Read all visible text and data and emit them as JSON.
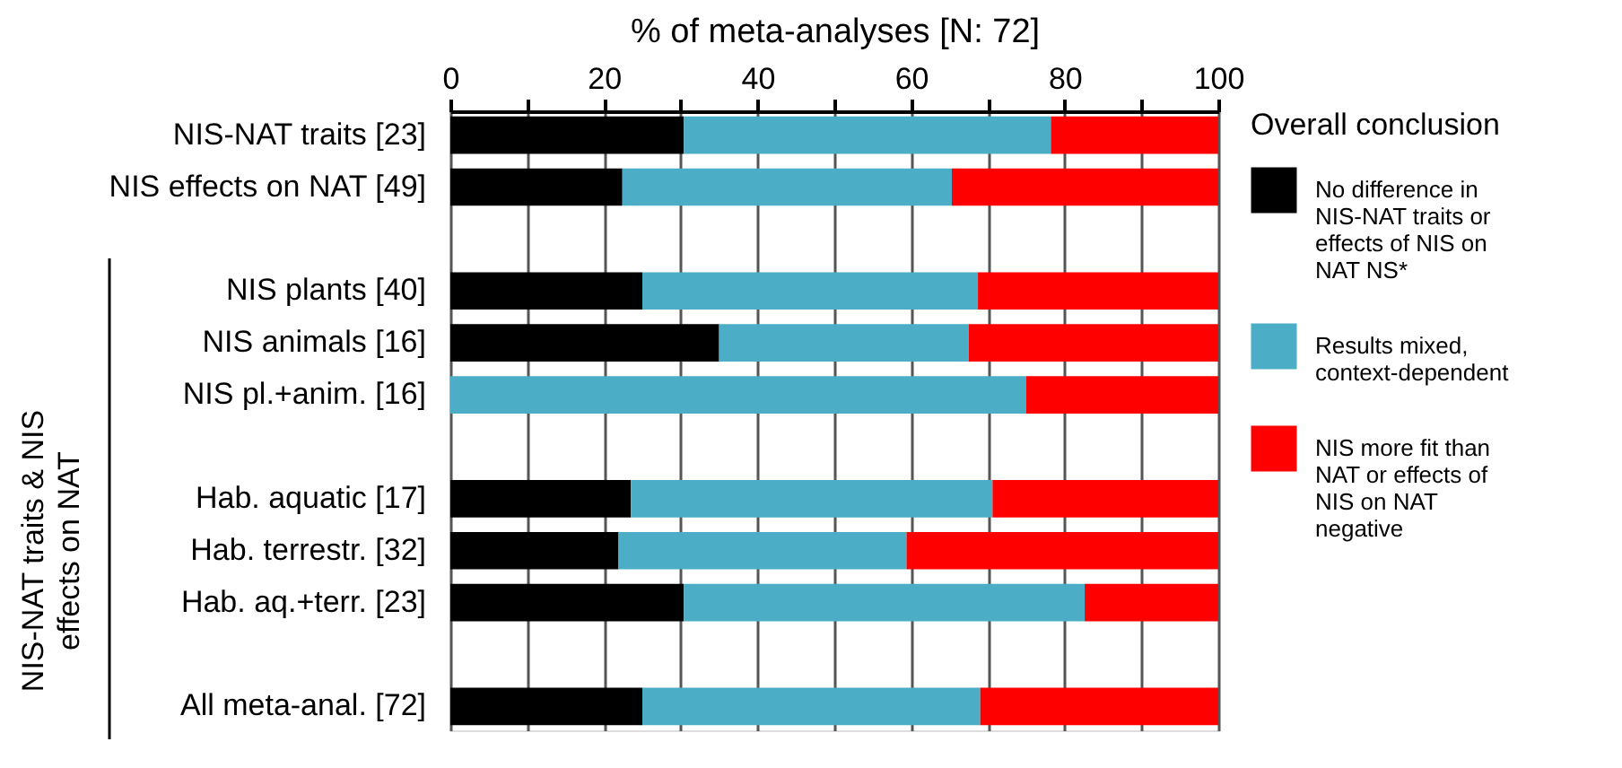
{
  "chart_data": {
    "type": "bar",
    "orientation": "horizontal",
    "stacked": true,
    "xlabel": "% of meta-analyses [N: 72]",
    "legend_title": "Overall conclusion",
    "categories": [
      "NIS-NAT traits [23]",
      "NIS effects on NAT [49]",
      null,
      "NIS plants [40]",
      "NIS animals [16]",
      "NIS pl.+anim. [16]",
      null,
      "Hab. aquatic [17]",
      "Hab. terrestr. [32]",
      "Hab. aq.+terr. [23]",
      null,
      "All meta-anal. [72]"
    ],
    "series": [
      {
        "name": "No difference in NIS-NAT traits or effects of NIS on NAT NS*",
        "color": "#000000",
        "values": [
          30.4,
          22.4,
          null,
          25,
          35,
          0,
          null,
          23.5,
          21.9,
          30.4,
          null,
          25
        ]
      },
      {
        "name": "Results mixed, context-dependent",
        "color": "#4badc6",
        "values": [
          47.8,
          42.9,
          null,
          43.7,
          32.5,
          75,
          null,
          47.1,
          37.5,
          52.2,
          null,
          44
        ]
      },
      {
        "name": "NIS more fit than NAT or effects of NIS on NAT negative",
        "color": "#ff0000",
        "values": [
          21.8,
          34.7,
          null,
          31.3,
          32.5,
          25,
          null,
          29.4,
          40.6,
          17.4,
          null,
          31
        ]
      }
    ],
    "xlim": [
      0,
      100
    ],
    "xticks": [
      0,
      {
        "value": 10,
        "label": null
      },
      20,
      {
        "value": 30,
        "label": null
      },
      40,
      {
        "value": 50,
        "label": null
      },
      60,
      {
        "value": 70,
        "label": null
      },
      80,
      {
        "value": 90,
        "label": null
      },
      100
    ],
    "grid": "x",
    "legend": "right",
    "annotations": [
      "NIS-NAT traits & NIS effects on NAT"
    ]
  }
}
